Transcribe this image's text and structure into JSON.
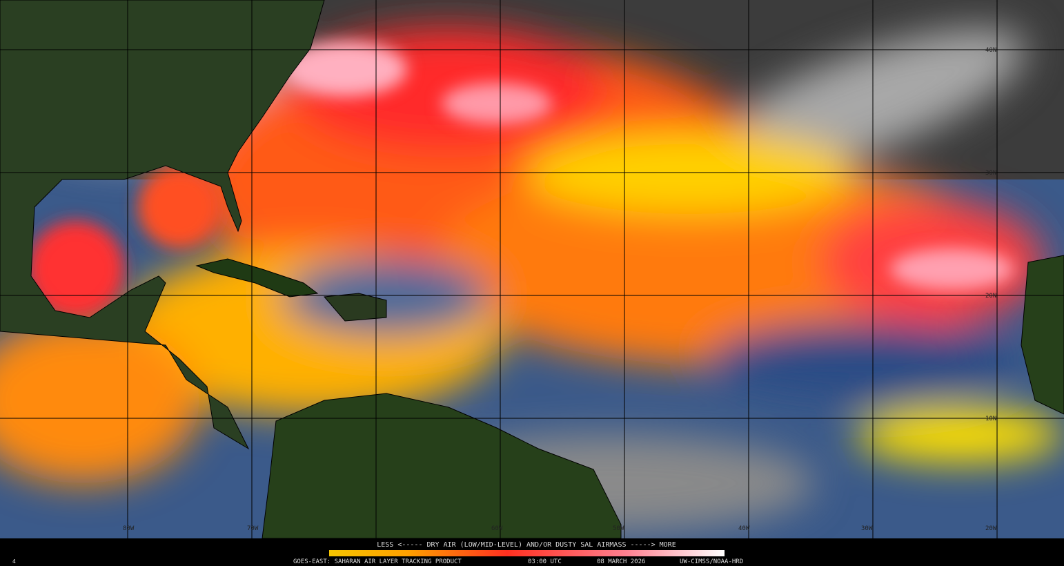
{
  "header": {
    "legend": "LESS <----- DRY AIR (LOW/MID-LEVEL) AND/OR DUSTY SAL AIRMASS -----> MORE"
  },
  "footer": {
    "product": "GOES-EAST: SAHARAN AIR LAYER TRACKING PRODUCT",
    "time": "03:00 UTC",
    "date": "08 MARCH 2026",
    "credit": "UW-CIMSS/NOAA-HRD",
    "corner": "4"
  },
  "grid": {
    "longitudes": [
      "80W",
      "70W",
      "60W",
      "50W",
      "40W",
      "30W",
      "20W"
    ],
    "latitudes": [
      "40N",
      "30N",
      "20N",
      "10N"
    ]
  }
}
